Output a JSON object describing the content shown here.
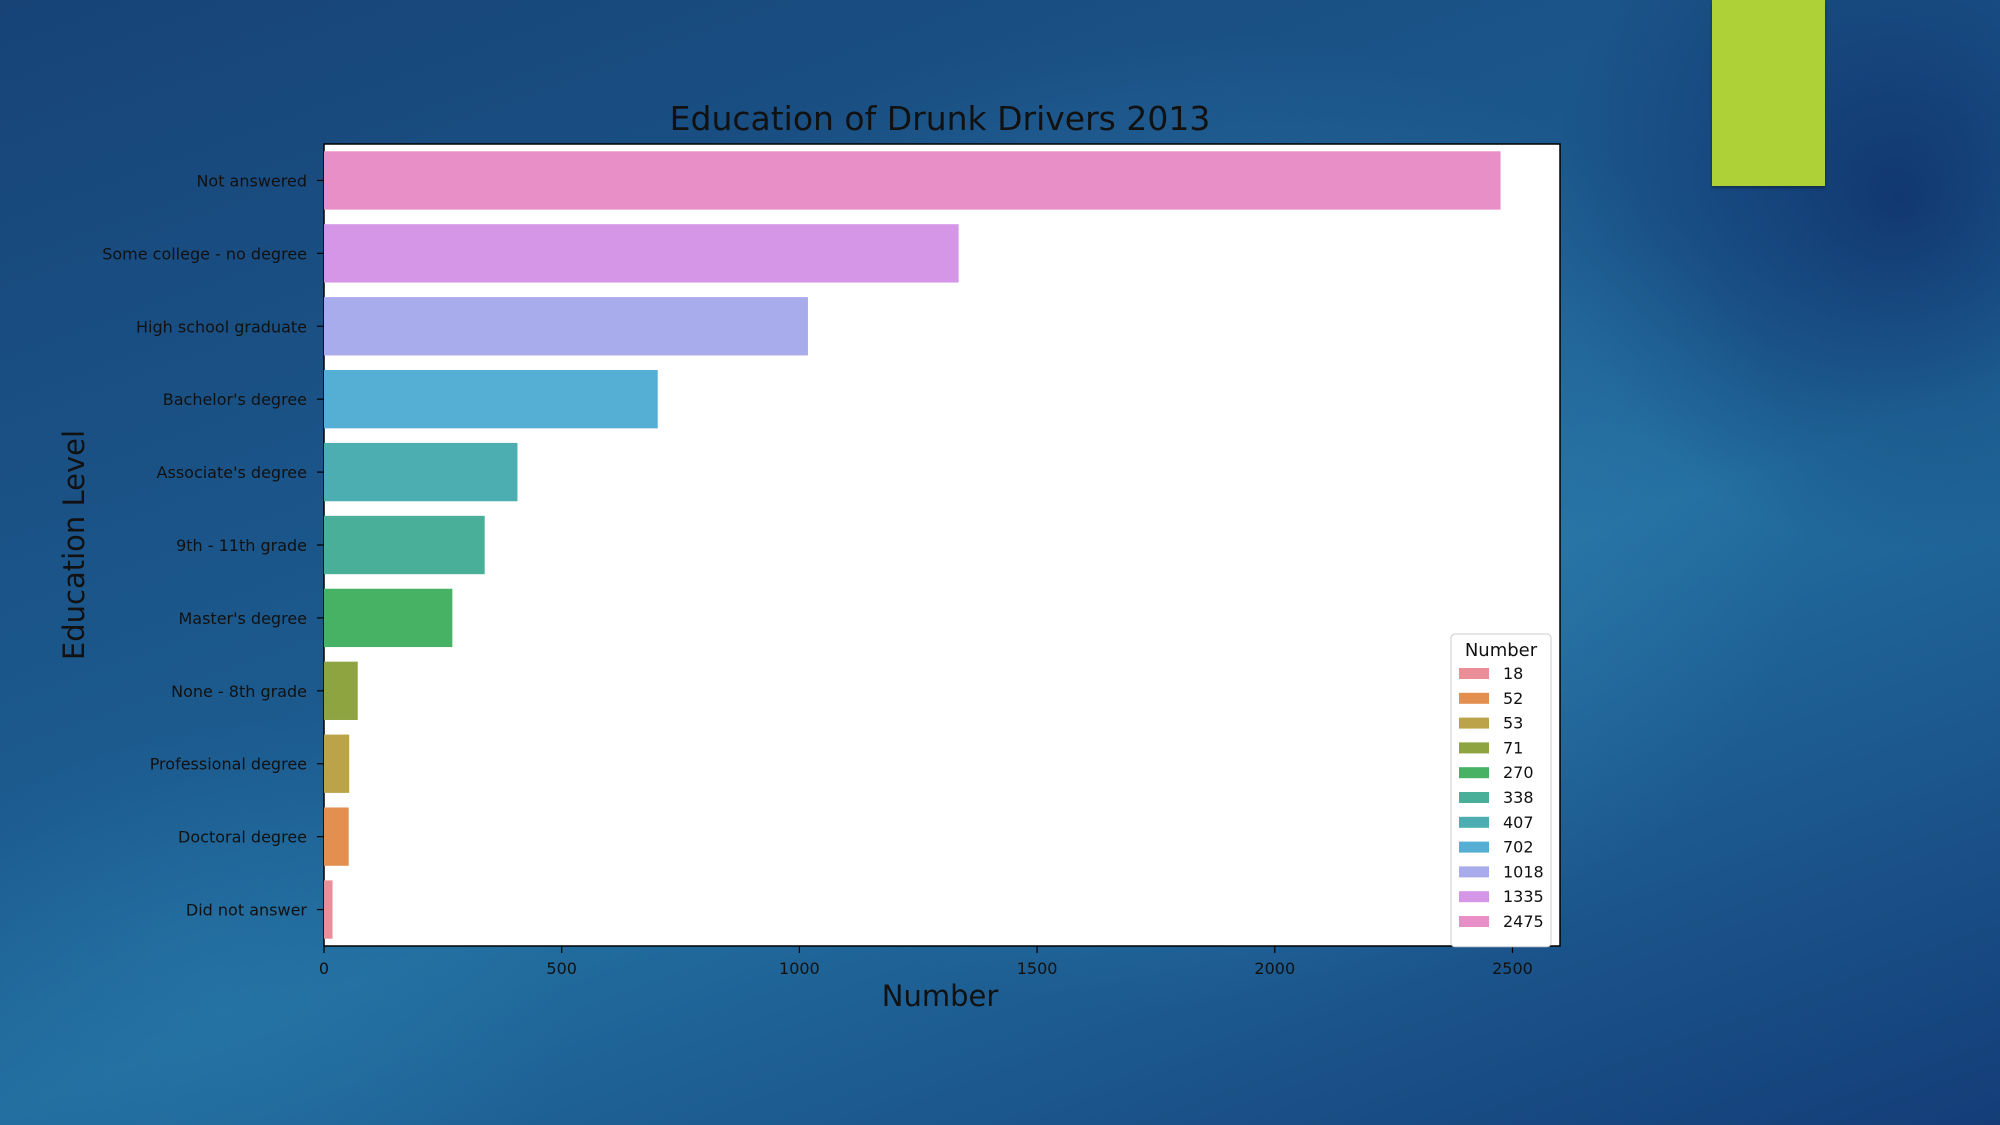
{
  "slide": {
    "background_color": "#1c5b8f",
    "accent_color": "#add136"
  },
  "chart_data": {
    "type": "bar",
    "orientation": "horizontal",
    "title": "Education of Drunk Drivers 2013",
    "xlabel": "Number",
    "ylabel": "Education Level",
    "xlim": [
      0,
      2600
    ],
    "xticks": [
      0,
      500,
      1000,
      1500,
      2000,
      2500
    ],
    "grid": false,
    "categories": [
      "Not answered",
      "Some college - no degree",
      "High school graduate",
      "Bachelor's degree",
      "Associate's degree",
      "9th - 11th grade",
      "Master's degree",
      "None - 8th grade",
      "Professional degree",
      "Doctoral degree",
      "Did not answer"
    ],
    "values": [
      2475,
      1335,
      1018,
      702,
      407,
      338,
      270,
      71,
      53,
      52,
      18
    ],
    "colors": [
      "#e88fc8",
      "#d596e8",
      "#a8abec",
      "#55aed3",
      "#4caeb1",
      "#4aaf98",
      "#47b263",
      "#8ea441",
      "#bca248",
      "#e38f4f",
      "#ec8e97"
    ],
    "legend": {
      "title": "Number",
      "position": "lower-right",
      "entries": [
        {
          "label": "18",
          "color": "#ec8e97"
        },
        {
          "label": "52",
          "color": "#e38f4f"
        },
        {
          "label": "53",
          "color": "#bca248"
        },
        {
          "label": "71",
          "color": "#8ea441"
        },
        {
          "label": "270",
          "color": "#47b263"
        },
        {
          "label": "338",
          "color": "#4aaf98"
        },
        {
          "label": "407",
          "color": "#4caeb1"
        },
        {
          "label": "702",
          "color": "#55aed3"
        },
        {
          "label": "1018",
          "color": "#a8abec"
        },
        {
          "label": "1335",
          "color": "#d596e8"
        },
        {
          "label": "2475",
          "color": "#e88fc8"
        }
      ]
    }
  }
}
